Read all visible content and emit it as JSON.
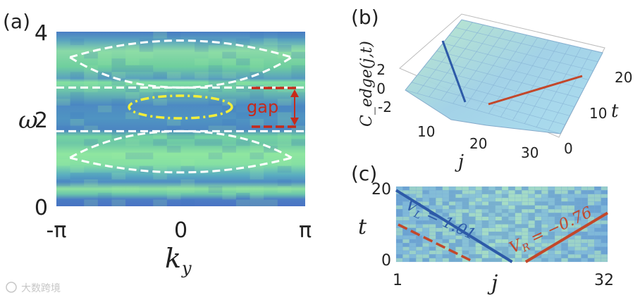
{
  "chart_data": [
    {
      "panel": "(a)",
      "type": "heatmap",
      "xlabel": "k_y",
      "ylabel": "ω",
      "xticks": [
        "-π",
        "0",
        "π"
      ],
      "yticks": [
        "0",
        "2",
        "4"
      ],
      "xlim": [
        -3.1416,
        3.1416
      ],
      "ylim": [
        0,
        4
      ],
      "annotation": "gap",
      "gap_range": [
        1.72,
        2.72
      ],
      "bands": [
        {
          "name": "upper",
          "omega_edge": 2.72,
          "omega_extreme": 3.45
        },
        {
          "name": "lower",
          "omega_edge": 1.72,
          "omega_extreme": 1.08
        }
      ],
      "edge_state_center": [
        0,
        2.25
      ]
    },
    {
      "panel": "(b)",
      "type": "surface",
      "zlabel": "C_edge(j,t)",
      "xlabel": "j",
      "ylabel": "t",
      "xticks": [
        "10",
        "20",
        "30"
      ],
      "yticks": [
        "0",
        "10",
        "20"
      ],
      "zticks": [
        "2",
        "0",
        "-2"
      ],
      "xlim": [
        1,
        32
      ],
      "ylim": [
        0,
        20
      ],
      "zlim": [
        -2,
        2
      ]
    },
    {
      "panel": "(c)",
      "type": "heatmap",
      "xlabel": "j",
      "ylabel": "t",
      "xticks": [
        "1",
        "32"
      ],
      "yticks": [
        "0",
        "20"
      ],
      "xlim": [
        1,
        32
      ],
      "ylim": [
        0,
        20
      ],
      "series": [
        {
          "name": "V_L = 1.01",
          "x": [
            1,
            18
          ],
          "y": [
            19,
            0
          ]
        },
        {
          "name": "V_R = −0.76",
          "x": [
            20,
            32
          ],
          "y": [
            0,
            13
          ]
        }
      ]
    }
  ],
  "labels": {
    "panel_a": "(a)",
    "panel_b": "(b)",
    "panel_c": "(c)",
    "gap": "gap",
    "vl_text": "V",
    "vl_sub": "L",
    "vl_value": " = 1.01",
    "vr_text": "V",
    "vr_sub": "R",
    "vr_value": " = −0.76",
    "watermark": "大数跨境"
  },
  "colors": {
    "background_blue": "#4a78c0",
    "band_green": "#7fe08a",
    "gap_red": "#c62a1a",
    "edge_yellow": "#f2ee3a",
    "vl_blue": "#2d5aa8",
    "vr_red": "#c3472a"
  }
}
